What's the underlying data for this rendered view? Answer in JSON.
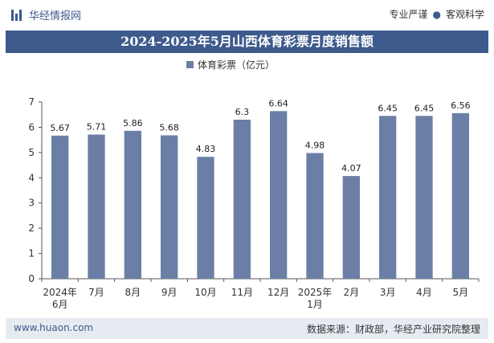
{
  "header": {
    "brand": "华经情报网",
    "slogan_left": "专业严谨",
    "slogan_right": "客观科学"
  },
  "colors": {
    "bar": "#6b7fa6",
    "title_bg": "#3d5a8c"
  },
  "footer": {
    "website": "www.huaon.com",
    "source": "数据来源：财政部，华经产业研究院整理"
  },
  "chart_data": {
    "type": "bar",
    "title": "2024-2025年5月山西体育彩票月度销售额",
    "legend": "top-center",
    "grid": false,
    "ylim": [
      0,
      7
    ],
    "yticks": [
      0,
      1,
      2,
      3,
      4,
      5,
      6,
      7
    ],
    "categories": [
      [
        "2024年",
        "6月"
      ],
      [
        "7月"
      ],
      [
        "8月"
      ],
      [
        "9月"
      ],
      [
        "10月"
      ],
      [
        "11月"
      ],
      [
        "12月"
      ],
      [
        "2025年",
        "1月"
      ],
      [
        "2月"
      ],
      [
        "3月"
      ],
      [
        "4月"
      ],
      [
        "5月"
      ]
    ],
    "series": [
      {
        "name": "体育彩票（亿元）",
        "values": [
          5.67,
          5.71,
          5.86,
          5.68,
          4.83,
          6.3,
          6.64,
          4.98,
          4.07,
          6.45,
          6.45,
          6.56
        ]
      }
    ]
  }
}
